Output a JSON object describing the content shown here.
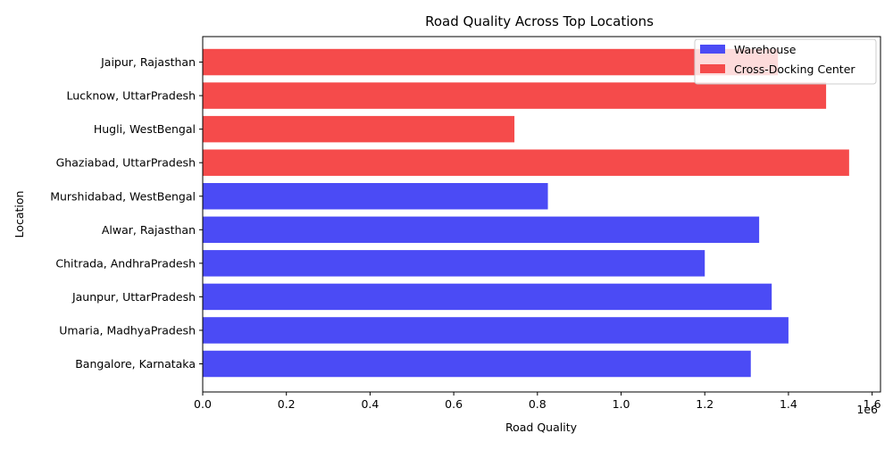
{
  "chart_data": {
    "type": "bar",
    "orientation": "horizontal",
    "title": "Road Quality Across Top Locations",
    "xlabel": "Road Quality",
    "ylabel": "Location",
    "x_offset_label": "1e6",
    "xlim": [
      0,
      1.62
    ],
    "x_ticks": [
      0.0,
      0.2,
      0.4,
      0.6,
      0.8,
      1.0,
      1.2,
      1.4,
      1.6
    ],
    "x_tick_labels": [
      "0.0",
      "0.2",
      "0.4",
      "0.6",
      "0.8",
      "1.0",
      "1.2",
      "1.4",
      "1.6"
    ],
    "grid": false,
    "legend_position": "top-right",
    "series": [
      {
        "name": "Warehouse",
        "color": "#4b4bf5"
      },
      {
        "name": "Cross-Docking Center",
        "color": "#f54b4b"
      }
    ],
    "categories": [
      "Bangalore, Karnataka",
      "Umaria, MadhyaPradesh",
      "Jaunpur, UttarPradesh",
      "Chitrada, AndhraPradesh",
      "Alwar, Rajasthan",
      "Murshidabad, WestBengal",
      "Ghaziabad, UttarPradesh",
      "Hugli, WestBengal",
      "Lucknow, UttarPradesh",
      "Jaipur, Rajasthan"
    ],
    "values": [
      1.31,
      1.4,
      1.36,
      1.2,
      1.33,
      0.825,
      1.545,
      0.745,
      1.49,
      1.375
    ],
    "bar_series": [
      0,
      0,
      0,
      0,
      0,
      0,
      1,
      1,
      1,
      1
    ]
  }
}
